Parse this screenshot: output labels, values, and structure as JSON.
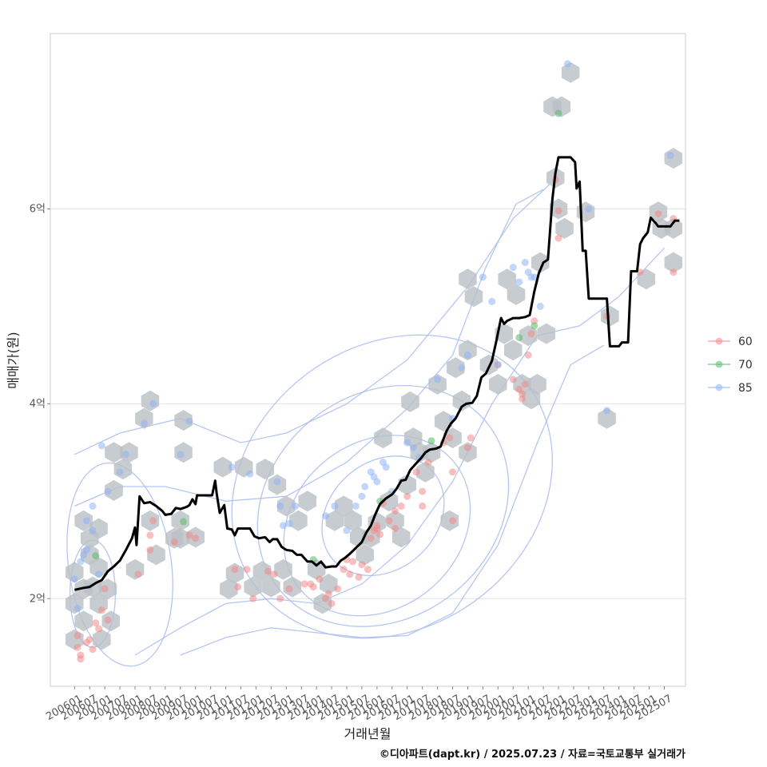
{
  "chart_data": {
    "type": "scatter",
    "xlabel": "거래년월",
    "ylabel": "매매가(원)",
    "caption": "©디아파트(dapt.kr) / 2025.07.23 / 자료=국토교통부 실거래가",
    "x_ticks": [
      "200601",
      "200607",
      "200701",
      "200707",
      "200801",
      "200807",
      "200901",
      "200907",
      "201001",
      "201007",
      "201101",
      "201107",
      "201201",
      "201207",
      "201301",
      "201307",
      "201401",
      "201407",
      "201501",
      "201507",
      "201601",
      "201607",
      "201701",
      "201707",
      "201801",
      "201807",
      "201901",
      "201907",
      "202001",
      "202007",
      "202101",
      "202107",
      "202201",
      "202207",
      "202301",
      "202307",
      "202401",
      "202407",
      "202501",
      "202507"
    ],
    "y_ticks": [
      {
        "value": 2,
        "label": "2억"
      },
      {
        "value": 4,
        "label": "4억"
      },
      {
        "value": 6,
        "label": "6억"
      }
    ],
    "ylim": [
      1.1,
      7.8
    ],
    "xlim": [
      2005.2,
      2026.2
    ],
    "grid": "horizontal",
    "legend": {
      "position": "right",
      "entries": [
        {
          "label": "60",
          "color": "#f08a8a"
        },
        {
          "label": "70",
          "color": "#55bb66"
        },
        {
          "label": "85",
          "color": "#8fb2f5"
        }
      ]
    },
    "hex_color": "#b9bfc4",
    "contour_color": "#a8bcf0",
    "line_color": "#000000",
    "median_line": [
      [
        2006.0,
        2.09
      ],
      [
        2006.3,
        2.11
      ],
      [
        2006.5,
        2.12
      ],
      [
        2006.7,
        2.16
      ],
      [
        2006.9,
        2.19
      ],
      [
        2007.1,
        2.28
      ],
      [
        2007.3,
        2.33
      ],
      [
        2007.5,
        2.39
      ],
      [
        2007.7,
        2.5
      ],
      [
        2007.9,
        2.62
      ],
      [
        2008.0,
        2.73
      ],
      [
        2008.05,
        2.55
      ],
      [
        2008.15,
        3.05
      ],
      [
        2008.3,
        2.98
      ],
      [
        2008.5,
        2.99
      ],
      [
        2008.7,
        2.95
      ],
      [
        2008.9,
        2.9
      ],
      [
        2009.0,
        2.86
      ],
      [
        2009.2,
        2.87
      ],
      [
        2009.35,
        2.93
      ],
      [
        2009.5,
        2.92
      ],
      [
        2009.7,
        2.94
      ],
      [
        2009.8,
        2.96
      ],
      [
        2009.9,
        3.02
      ],
      [
        2010.0,
        2.97
      ],
      [
        2010.05,
        3.06
      ],
      [
        2010.2,
        3.06
      ],
      [
        2010.4,
        3.06
      ],
      [
        2010.55,
        3.06
      ],
      [
        2010.65,
        3.21
      ],
      [
        2010.7,
        3.08
      ],
      [
        2010.8,
        2.88
      ],
      [
        2010.95,
        2.96
      ],
      [
        2011.05,
        2.72
      ],
      [
        2011.2,
        2.71
      ],
      [
        2011.3,
        2.65
      ],
      [
        2011.4,
        2.72
      ],
      [
        2011.6,
        2.72
      ],
      [
        2011.8,
        2.72
      ],
      [
        2011.95,
        2.64
      ],
      [
        2012.1,
        2.62
      ],
      [
        2012.3,
        2.63
      ],
      [
        2012.45,
        2.58
      ],
      [
        2012.55,
        2.61
      ],
      [
        2012.7,
        2.61
      ],
      [
        2012.85,
        2.53
      ],
      [
        2013.0,
        2.5
      ],
      [
        2013.2,
        2.49
      ],
      [
        2013.35,
        2.45
      ],
      [
        2013.5,
        2.45
      ],
      [
        2013.7,
        2.38
      ],
      [
        2013.85,
        2.38
      ],
      [
        2014.0,
        2.34
      ],
      [
        2014.15,
        2.38
      ],
      [
        2014.3,
        2.32
      ],
      [
        2014.5,
        2.33
      ],
      [
        2014.65,
        2.33
      ],
      [
        2014.8,
        2.39
      ],
      [
        2014.95,
        2.42
      ],
      [
        2015.1,
        2.46
      ],
      [
        2015.3,
        2.52
      ],
      [
        2015.5,
        2.58
      ],
      [
        2015.65,
        2.68
      ],
      [
        2015.8,
        2.75
      ],
      [
        2015.95,
        2.87
      ],
      [
        2016.1,
        2.97
      ],
      [
        2016.3,
        3.03
      ],
      [
        2016.5,
        3.07
      ],
      [
        2016.65,
        3.13
      ],
      [
        2016.8,
        3.21
      ],
      [
        2016.95,
        3.22
      ],
      [
        2017.1,
        3.32
      ],
      [
        2017.3,
        3.39
      ],
      [
        2017.45,
        3.44
      ],
      [
        2017.6,
        3.5
      ],
      [
        2017.75,
        3.53
      ],
      [
        2017.95,
        3.54
      ],
      [
        2018.1,
        3.56
      ],
      [
        2018.3,
        3.72
      ],
      [
        2018.45,
        3.8
      ],
      [
        2018.6,
        3.85
      ],
      [
        2018.8,
        3.97
      ],
      [
        2018.95,
        4.0
      ],
      [
        2019.15,
        4.01
      ],
      [
        2019.3,
        4.08
      ],
      [
        2019.45,
        4.27
      ],
      [
        2019.6,
        4.31
      ],
      [
        2019.8,
        4.44
      ],
      [
        2019.95,
        4.65
      ],
      [
        2020.1,
        4.88
      ],
      [
        2020.2,
        4.82
      ],
      [
        2020.3,
        4.85
      ],
      [
        2020.5,
        4.88
      ],
      [
        2020.7,
        4.88
      ],
      [
        2020.9,
        4.89
      ],
      [
        2021.05,
        4.91
      ],
      [
        2021.2,
        5.15
      ],
      [
        2021.35,
        5.34
      ],
      [
        2021.5,
        5.45
      ],
      [
        2021.65,
        5.48
      ],
      [
        2021.8,
        6.1
      ],
      [
        2021.9,
        6.37
      ],
      [
        2022.0,
        6.53
      ],
      [
        2022.2,
        6.53
      ],
      [
        2022.4,
        6.53
      ],
      [
        2022.55,
        6.48
      ],
      [
        2022.6,
        6.21
      ],
      [
        2022.7,
        6.28
      ],
      [
        2022.8,
        5.57
      ],
      [
        2022.9,
        5.57
      ],
      [
        2023.0,
        5.08
      ],
      [
        2023.2,
        5.08
      ],
      [
        2023.4,
        5.08
      ],
      [
        2023.6,
        5.08
      ],
      [
        2023.7,
        4.59
      ],
      [
        2023.9,
        4.59
      ],
      [
        2024.0,
        4.59
      ],
      [
        2024.1,
        4.63
      ],
      [
        2024.3,
        4.63
      ],
      [
        2024.4,
        5.36
      ],
      [
        2024.6,
        5.36
      ],
      [
        2024.7,
        5.64
      ],
      [
        2024.8,
        5.7
      ],
      [
        2024.95,
        5.76
      ],
      [
        2025.05,
        5.91
      ],
      [
        2025.2,
        5.86
      ],
      [
        2025.3,
        5.82
      ],
      [
        2025.5,
        5.82
      ],
      [
        2025.7,
        5.82
      ],
      [
        2025.85,
        5.88
      ],
      [
        2026.0,
        5.88
      ]
    ],
    "hexbins": [
      [
        2006.0,
        2.27
      ],
      [
        2006.0,
        1.95
      ],
      [
        2006.0,
        1.58
      ],
      [
        2006.3,
        2.1
      ],
      [
        2006.3,
        1.77
      ],
      [
        2006.3,
        2.8
      ],
      [
        2006.5,
        2.45
      ],
      [
        2006.5,
        2.62
      ],
      [
        2006.6,
        2.12
      ],
      [
        2006.8,
        1.95
      ],
      [
        2006.8,
        2.32
      ],
      [
        2006.8,
        2.72
      ],
      [
        2006.9,
        1.58
      ],
      [
        2007.1,
        2.1
      ],
      [
        2007.2,
        1.77
      ],
      [
        2007.3,
        3.11
      ],
      [
        2007.3,
        3.5
      ],
      [
        2007.6,
        3.33
      ],
      [
        2007.8,
        3.5
      ],
      [
        2008.0,
        2.3
      ],
      [
        2008.3,
        3.85
      ],
      [
        2008.5,
        4.03
      ],
      [
        2008.5,
        2.8
      ],
      [
        2008.7,
        2.45
      ],
      [
        2009.3,
        2.62
      ],
      [
        2009.5,
        2.62
      ],
      [
        2009.5,
        2.8
      ],
      [
        2009.6,
        3.83
      ],
      [
        2009.6,
        3.5
      ],
      [
        2010.0,
        2.63
      ],
      [
        2010.9,
        3.35
      ],
      [
        2011.1,
        2.1
      ],
      [
        2011.3,
        2.26
      ],
      [
        2011.6,
        3.35
      ],
      [
        2011.9,
        2.12
      ],
      [
        2012.2,
        2.28
      ],
      [
        2012.3,
        3.33
      ],
      [
        2012.5,
        2.12
      ],
      [
        2012.7,
        3.17
      ],
      [
        2012.9,
        2.3
      ],
      [
        2013.0,
        2.95
      ],
      [
        2013.2,
        2.12
      ],
      [
        2013.4,
        2.8
      ],
      [
        2013.7,
        3.0
      ],
      [
        2014.0,
        2.3
      ],
      [
        2014.2,
        1.95
      ],
      [
        2014.4,
        2.15
      ],
      [
        2014.6,
        2.8
      ],
      [
        2014.9,
        2.95
      ],
      [
        2015.2,
        2.8
      ],
      [
        2015.4,
        2.63
      ],
      [
        2015.6,
        2.45
      ],
      [
        2015.8,
        2.63
      ],
      [
        2016.0,
        2.78
      ],
      [
        2016.2,
        3.65
      ],
      [
        2016.4,
        3.0
      ],
      [
        2016.6,
        2.8
      ],
      [
        2016.8,
        2.63
      ],
      [
        2017.0,
        3.17
      ],
      [
        2017.1,
        4.02
      ],
      [
        2017.2,
        3.65
      ],
      [
        2017.4,
        3.5
      ],
      [
        2017.6,
        3.3
      ],
      [
        2017.8,
        3.5
      ],
      [
        2018.0,
        4.2
      ],
      [
        2018.2,
        3.82
      ],
      [
        2018.4,
        2.8
      ],
      [
        2018.5,
        3.65
      ],
      [
        2018.6,
        4.37
      ],
      [
        2018.8,
        4.03
      ],
      [
        2019.0,
        3.5
      ],
      [
        2019.0,
        4.55
      ],
      [
        2019.0,
        5.28
      ],
      [
        2019.2,
        5.1
      ],
      [
        2019.7,
        4.4
      ],
      [
        2020.0,
        4.2
      ],
      [
        2020.2,
        4.72
      ],
      [
        2020.3,
        5.28
      ],
      [
        2020.5,
        4.55
      ],
      [
        2020.6,
        5.12
      ],
      [
        2020.8,
        4.2
      ],
      [
        2021.0,
        4.7
      ],
      [
        2021.1,
        4.05
      ],
      [
        2021.3,
        4.2
      ],
      [
        2021.4,
        5.45
      ],
      [
        2021.6,
        4.72
      ],
      [
        2021.8,
        7.05
      ],
      [
        2021.9,
        6.32
      ],
      [
        2022.0,
        6.0
      ],
      [
        2022.1,
        7.05
      ],
      [
        2022.2,
        5.8
      ],
      [
        2022.4,
        7.4
      ],
      [
        2022.9,
        5.97
      ],
      [
        2023.6,
        3.85
      ],
      [
        2023.7,
        4.9
      ],
      [
        2024.9,
        5.28
      ],
      [
        2025.3,
        5.97
      ],
      [
        2025.4,
        5.8
      ],
      [
        2025.8,
        5.8
      ],
      [
        2025.8,
        5.45
      ],
      [
        2025.8,
        6.52
      ]
    ],
    "points_60": [
      [
        2006.1,
        1.62
      ],
      [
        2006.1,
        1.5
      ],
      [
        2006.2,
        1.42
      ],
      [
        2006.2,
        1.38
      ],
      [
        2006.4,
        1.55
      ],
      [
        2006.5,
        1.58
      ],
      [
        2006.6,
        1.48
      ],
      [
        2006.7,
        1.75
      ],
      [
        2006.8,
        1.69
      ],
      [
        2006.9,
        1.88
      ],
      [
        2007.0,
        2.1
      ],
      [
        2007.1,
        1.78
      ],
      [
        2008.1,
        2.25
      ],
      [
        2008.5,
        2.65
      ],
      [
        2008.5,
        2.5
      ],
      [
        2008.6,
        2.8
      ],
      [
        2009.3,
        2.58
      ],
      [
        2009.8,
        2.65
      ],
      [
        2010.0,
        2.62
      ],
      [
        2011.3,
        2.3
      ],
      [
        2011.4,
        2.12
      ],
      [
        2011.7,
        2.3
      ],
      [
        2011.9,
        2.0
      ],
      [
        2012.4,
        2.28
      ],
      [
        2012.6,
        2.25
      ],
      [
        2012.8,
        2.0
      ],
      [
        2013.1,
        2.1
      ],
      [
        2013.6,
        2.15
      ],
      [
        2013.8,
        2.15
      ],
      [
        2013.9,
        2.12
      ],
      [
        2014.1,
        2.2
      ],
      [
        2014.3,
        2.0
      ],
      [
        2014.4,
        2.05
      ],
      [
        2014.5,
        1.95
      ],
      [
        2014.7,
        2.1
      ],
      [
        2014.9,
        2.3
      ],
      [
        2015.0,
        2.4
      ],
      [
        2015.1,
        2.25
      ],
      [
        2015.2,
        2.38
      ],
      [
        2015.4,
        2.22
      ],
      [
        2015.5,
        2.35
      ],
      [
        2015.7,
        2.3
      ],
      [
        2015.8,
        2.62
      ],
      [
        2015.9,
        2.7
      ],
      [
        2016.0,
        2.72
      ],
      [
        2016.0,
        2.75
      ],
      [
        2016.1,
        2.66
      ],
      [
        2016.2,
        2.98
      ],
      [
        2016.4,
        2.8
      ],
      [
        2016.6,
        2.9
      ],
      [
        2016.6,
        2.72
      ],
      [
        2016.8,
        2.95
      ],
      [
        2017.0,
        3.05
      ],
      [
        2017.3,
        3.3
      ],
      [
        2017.5,
        3.1
      ],
      [
        2017.5,
        2.95
      ],
      [
        2017.7,
        3.4
      ],
      [
        2018.2,
        3.6
      ],
      [
        2018.4,
        3.65
      ],
      [
        2018.5,
        3.3
      ],
      [
        2018.5,
        2.8
      ],
      [
        2019.0,
        3.55
      ],
      [
        2019.1,
        3.65
      ],
      [
        2020.0,
        4.4
      ],
      [
        2020.5,
        4.25
      ],
      [
        2020.7,
        4.15
      ],
      [
        2020.8,
        4.05
      ],
      [
        2020.8,
        4.1
      ],
      [
        2020.9,
        4.2
      ],
      [
        2021.0,
        4.5
      ],
      [
        2021.1,
        4.72
      ],
      [
        2021.2,
        4.85
      ],
      [
        2021.9,
        6.3
      ],
      [
        2022.0,
        5.98
      ],
      [
        2022.0,
        5.7
      ],
      [
        2023.6,
        4.9
      ],
      [
        2024.7,
        5.35
      ],
      [
        2025.3,
        5.95
      ],
      [
        2025.8,
        5.9
      ],
      [
        2025.8,
        5.35
      ]
    ],
    "points_70": [
      [
        2006.7,
        2.44
      ],
      [
        2009.6,
        2.79
      ],
      [
        2013.9,
        2.4
      ],
      [
        2016.1,
        3.0
      ],
      [
        2017.8,
        3.62
      ],
      [
        2020.7,
        4.68
      ],
      [
        2021.2,
        4.8
      ],
      [
        2022.0,
        6.98
      ]
    ],
    "points_85": [
      [
        2006.0,
        2.2
      ],
      [
        2006.1,
        1.9
      ],
      [
        2006.2,
        2.38
      ],
      [
        2006.3,
        2.45
      ],
      [
        2006.4,
        2.5
      ],
      [
        2006.4,
        2.8
      ],
      [
        2006.6,
        2.95
      ],
      [
        2006.6,
        2.7
      ],
      [
        2006.8,
        2.25
      ],
      [
        2006.9,
        3.57
      ],
      [
        2007.1,
        3.1
      ],
      [
        2007.5,
        3.3
      ],
      [
        2007.7,
        3.48
      ],
      [
        2008.3,
        3.8
      ],
      [
        2008.6,
        4.0
      ],
      [
        2009.5,
        3.48
      ],
      [
        2009.8,
        3.82
      ],
      [
        2011.2,
        3.35
      ],
      [
        2011.8,
        3.28
      ],
      [
        2012.7,
        3.2
      ],
      [
        2012.8,
        2.95
      ],
      [
        2012.9,
        2.75
      ],
      [
        2013.1,
        2.77
      ],
      [
        2013.3,
        2.95
      ],
      [
        2014.3,
        2.85
      ],
      [
        2014.6,
        2.95
      ],
      [
        2015.0,
        2.7
      ],
      [
        2015.3,
        2.95
      ],
      [
        2015.5,
        3.05
      ],
      [
        2015.6,
        3.15
      ],
      [
        2015.8,
        3.3
      ],
      [
        2015.9,
        3.25
      ],
      [
        2016.0,
        3.2
      ],
      [
        2016.2,
        3.4
      ],
      [
        2016.3,
        3.35
      ],
      [
        2016.5,
        3.1
      ],
      [
        2017.0,
        3.6
      ],
      [
        2017.2,
        3.55
      ],
      [
        2017.4,
        3.45
      ],
      [
        2018.0,
        4.25
      ],
      [
        2018.5,
        3.85
      ],
      [
        2018.8,
        4.37
      ],
      [
        2019.0,
        4.5
      ],
      [
        2019.5,
        5.3
      ],
      [
        2019.8,
        5.05
      ],
      [
        2020.0,
        4.4
      ],
      [
        2020.5,
        5.4
      ],
      [
        2020.7,
        5.25
      ],
      [
        2020.9,
        5.45
      ],
      [
        2021.0,
        5.35
      ],
      [
        2021.1,
        5.3
      ],
      [
        2021.2,
        5.3
      ],
      [
        2021.4,
        5.0
      ],
      [
        2022.3,
        7.49
      ],
      [
        2023.0,
        6.0
      ],
      [
        2023.6,
        3.93
      ],
      [
        2025.7,
        6.55
      ]
    ]
  }
}
